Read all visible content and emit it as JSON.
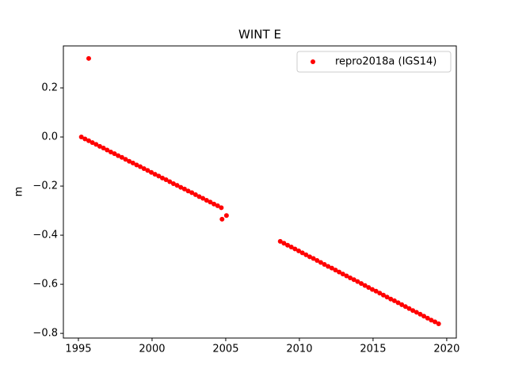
{
  "chart_data": {
    "type": "scatter",
    "title": "WINT E",
    "ylabel": "m",
    "xlim": [
      1993.98,
      2020.65
    ],
    "ylim": [
      -0.819,
      0.371
    ],
    "xticks": [
      1995,
      2000,
      2005,
      2010,
      2015,
      2020
    ],
    "yticks": [
      {
        "value": -0.8,
        "label": "−0.8"
      },
      {
        "value": -0.6,
        "label": "−0.6"
      },
      {
        "value": -0.4,
        "label": "−0.4"
      },
      {
        "value": -0.2,
        "label": "−0.2"
      },
      {
        "value": 0.0,
        "label": "0.0"
      },
      0.2
    ],
    "legend": "upper right",
    "series": [
      {
        "name": "repro2018a (IGS14)",
        "color": "#ff0000",
        "x": [
          1995.2,
          1995.45,
          1995.7,
          1995.95,
          1996.2,
          1996.45,
          1996.7,
          1996.95,
          1997.2,
          1997.45,
          1997.7,
          1997.95,
          1998.2,
          1998.45,
          1998.7,
          1998.95,
          1999.2,
          1999.45,
          1999.7,
          1999.95,
          2000.2,
          2000.45,
          2000.7,
          2000.95,
          2001.2,
          2001.45,
          2001.7,
          2001.95,
          2002.2,
          2002.45,
          2002.7,
          2002.95,
          2003.2,
          2003.45,
          2003.7,
          2003.95,
          2004.2,
          2004.45,
          2004.7,
          2008.7,
          2008.95,
          2009.2,
          2009.45,
          2009.7,
          2009.95,
          2010.2,
          2010.45,
          2010.7,
          2010.95,
          2011.2,
          2011.45,
          2011.7,
          2011.95,
          2012.2,
          2012.45,
          2012.7,
          2012.95,
          2013.2,
          2013.45,
          2013.7,
          2013.95,
          2014.2,
          2014.45,
          2014.7,
          2014.95,
          2015.2,
          2015.45,
          2015.7,
          2015.95,
          2016.2,
          2016.45,
          2016.7,
          2016.95,
          2017.2,
          2017.45,
          2017.7,
          2017.95,
          2018.2,
          2018.45,
          2018.7,
          2018.95,
          2019.2,
          2019.45,
          1995.7,
          2004.75,
          2005.05
        ],
        "values": [
          0,
          -0.008,
          -0.015,
          -0.023,
          -0.03,
          -0.038,
          -0.045,
          -0.053,
          -0.061,
          -0.068,
          -0.076,
          -0.083,
          -0.091,
          -0.099,
          -0.106,
          -0.114,
          -0.121,
          -0.129,
          -0.136,
          -0.144,
          -0.152,
          -0.159,
          -0.167,
          -0.174,
          -0.182,
          -0.19,
          -0.197,
          -0.205,
          -0.212,
          -0.22,
          -0.227,
          -0.235,
          -0.243,
          -0.25,
          -0.258,
          -0.265,
          -0.273,
          -0.28,
          -0.288,
          -0.425,
          -0.433,
          -0.441,
          -0.448,
          -0.456,
          -0.464,
          -0.472,
          -0.48,
          -0.488,
          -0.495,
          -0.503,
          -0.511,
          -0.519,
          -0.527,
          -0.534,
          -0.542,
          -0.55,
          -0.558,
          -0.566,
          -0.574,
          -0.581,
          -0.589,
          -0.597,
          -0.605,
          -0.613,
          -0.621,
          -0.628,
          -0.636,
          -0.644,
          -0.652,
          -0.66,
          -0.667,
          -0.675,
          -0.683,
          -0.691,
          -0.699,
          -0.707,
          -0.714,
          -0.722,
          -0.73,
          -0.738,
          -0.746,
          -0.753,
          -0.761,
          0.32,
          -0.335,
          -0.32
        ]
      }
    ]
  }
}
